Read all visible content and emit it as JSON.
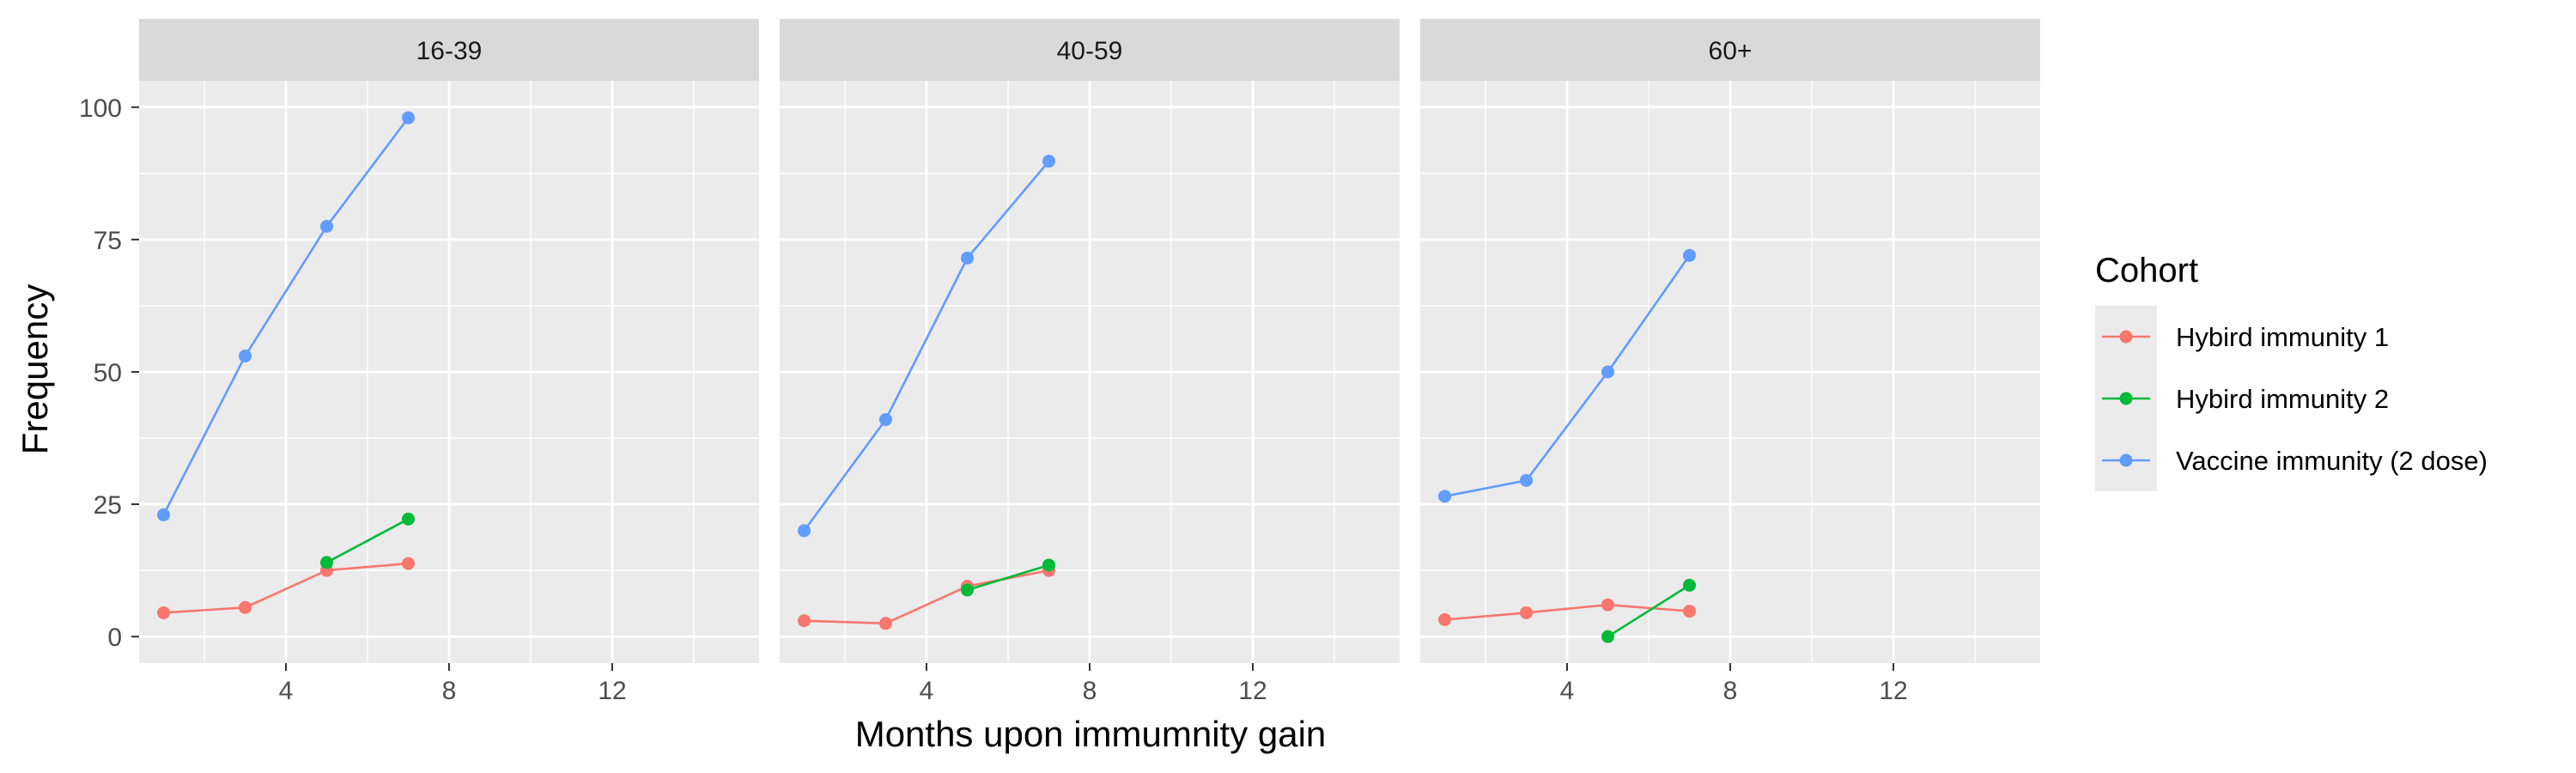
{
  "chart_data": {
    "type": "line",
    "xlabel": "Months upon immumnity gain",
    "ylabel": "Frequency",
    "xlim": [
      0.4,
      15.6
    ],
    "ylim": [
      -5,
      105
    ],
    "x_ticks": [
      4,
      8,
      12
    ],
    "x_tick_labels": [
      "4",
      "8",
      "12"
    ],
    "y_ticks": [
      0,
      25,
      50,
      75,
      100
    ],
    "y_tick_labels": [
      "0",
      "25",
      "50",
      "75",
      "100"
    ],
    "grid": true,
    "legend": {
      "title": "Cohort",
      "position": "right",
      "entries": [
        "Hybird immunity 1",
        "Hybird immunity 2",
        "Vaccine immunity (2 dose)"
      ]
    },
    "colors": {
      "Hybird immunity 1": "#F8766D",
      "Hybird immunity 2": "#00BA38",
      "Vaccine immunity (2 dose)": "#619CFF"
    },
    "panels": [
      {
        "title": "16-39",
        "series": [
          {
            "name": "Hybird immunity 1",
            "x": [
              1,
              3,
              5,
              7
            ],
            "y": [
              4.5,
              5.5,
              12.5,
              13.8
            ]
          },
          {
            "name": "Hybird immunity 2",
            "x": [
              5,
              7
            ],
            "y": [
              14,
              22.2
            ]
          },
          {
            "name": "Vaccine immunity (2 dose)",
            "x": [
              1,
              3,
              5,
              7
            ],
            "y": [
              23,
              53,
              77.5,
              98
            ]
          }
        ]
      },
      {
        "title": "40-59",
        "series": [
          {
            "name": "Hybird immunity 1",
            "x": [
              1,
              3,
              5,
              7
            ],
            "y": [
              3,
              2.5,
              9.5,
              12.5
            ]
          },
          {
            "name": "Hybird immunity 2",
            "x": [
              5,
              7
            ],
            "y": [
              8.8,
              13.5
            ]
          },
          {
            "name": "Vaccine immunity (2 dose)",
            "x": [
              1,
              3,
              5,
              7
            ],
            "y": [
              20,
              41,
              71.5,
              89.8
            ]
          }
        ]
      },
      {
        "title": "60+",
        "series": [
          {
            "name": "Hybird immunity 1",
            "x": [
              1,
              3,
              5,
              7
            ],
            "y": [
              3.2,
              4.5,
              6,
              4.8
            ]
          },
          {
            "name": "Hybird immunity 2",
            "x": [
              5,
              7
            ],
            "y": [
              0,
              9.7
            ]
          },
          {
            "name": "Vaccine immunity (2 dose)",
            "x": [
              1,
              3,
              5,
              7
            ],
            "y": [
              26.5,
              29.5,
              50,
              72
            ]
          }
        ]
      }
    ]
  }
}
